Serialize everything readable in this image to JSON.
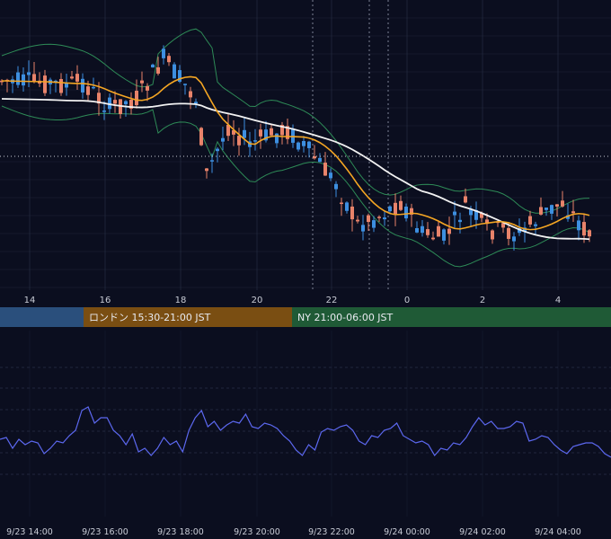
{
  "chart_data": {
    "type": "line",
    "main_panel": {
      "x_ticks": [
        "14",
        "16",
        "18",
        "20",
        "22",
        "0",
        "2",
        "4"
      ],
      "indicators": [
        "candlesticks",
        "moving-average-short",
        "moving-average-long",
        "bollinger-bands"
      ],
      "reference_line": "dotted-horizontal"
    },
    "sessions": [
      {
        "label": "",
        "color": "#2a4f7c"
      },
      {
        "label": "ロンドン 15:30-21:00 JST",
        "color": "#7a4e12"
      },
      {
        "label": "NY 21:00-06:00 JST",
        "color": "#1f5a36"
      }
    ],
    "oscillator": {
      "color": "#5c68f0",
      "values": [
        43,
        44,
        38,
        43,
        40,
        42,
        41,
        35,
        38,
        42,
        41,
        45,
        48,
        59,
        61,
        52,
        55,
        55,
        48,
        45,
        40,
        46,
        36,
        38,
        34,
        38,
        44,
        40,
        42,
        36,
        48,
        55,
        59,
        50,
        53,
        48,
        51,
        53,
        52,
        57,
        50,
        49,
        52,
        51,
        49,
        45,
        42,
        37,
        34,
        40,
        37,
        47,
        49,
        48,
        50,
        51,
        48,
        42,
        40,
        45,
        44,
        48,
        49,
        52,
        45,
        43,
        41,
        42,
        40,
        34,
        38,
        37,
        41,
        40,
        44,
        50,
        55,
        51,
        53,
        49,
        49,
        50,
        53,
        52,
        42,
        43,
        45,
        44,
        40,
        37,
        35,
        39,
        40,
        41,
        41,
        39,
        35,
        33
      ]
    },
    "x_axis_bottom": [
      "9/23 14:00",
      "9/23 16:00",
      "9/23 18:00",
      "9/23 20:00",
      "9/23 22:00",
      "9/24 00:00",
      "9/24 02:00",
      "9/24 04:00"
    ]
  },
  "colors": {
    "background": "#0b0e1f",
    "grid": "#2a3148",
    "candle_up": "#3d8fe0",
    "candle_down": "#e8836a",
    "ma_short": "#f5a623",
    "ma_long": "#f2f2f2",
    "bollinger": "#2e8b57"
  }
}
